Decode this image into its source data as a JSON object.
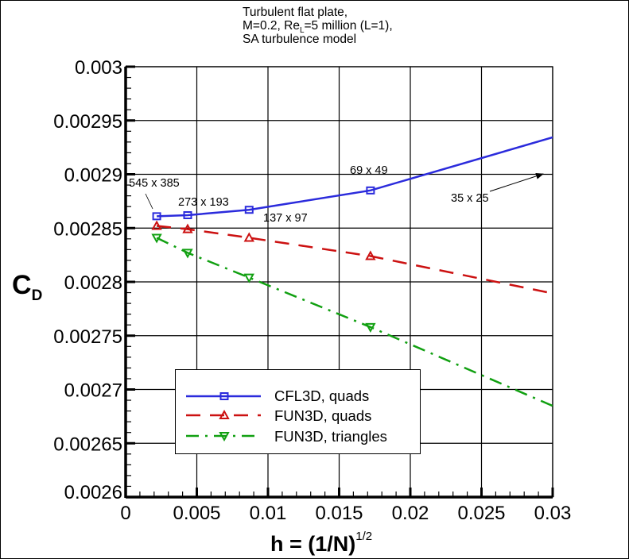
{
  "chart_data": {
    "type": "line",
    "title_lines": [
      "Turbulent flat plate,",
      "M=0.2, Re",
      "L",
      "=5 million (L=1),",
      "SA turbulence model"
    ],
    "xlabel": "h = (1/N)",
    "xlabel_sup": "1/2",
    "ylabel": "C",
    "ylabel_sub": "D",
    "xlim": [
      0,
      0.03
    ],
    "ylim": [
      0.0026,
      0.003
    ],
    "xticks": [
      0,
      0.005,
      0.01,
      0.015,
      0.02,
      0.025,
      0.03
    ],
    "xtick_labels": [
      "0",
      "0.005",
      "0.01",
      "0.015",
      "0.02",
      "0.025",
      "0.03"
    ],
    "yticks": [
      0.0026,
      0.00265,
      0.0027,
      0.00275,
      0.0028,
      0.00285,
      0.0029,
      0.00295,
      0.003
    ],
    "ytick_labels": [
      "0.0026",
      "0.00265",
      "0.0027",
      "0.00275",
      "0.0028",
      "0.00285",
      "0.0029",
      "0.00295",
      "0.003"
    ],
    "grid": true,
    "legend_position": "lower-left",
    "x": [
      0.002183,
      0.004357,
      0.008675,
      0.0172,
      0.0338
    ],
    "grid_labels": [
      "545 x 385",
      "273 x 193",
      "137 x 97",
      "69 x 49",
      "35 x 25"
    ],
    "series": [
      {
        "name": "CFL3D, quads",
        "color": "#2b2bdc",
        "dash": "solid",
        "marker": "square",
        "values": [
          0.002861,
          0.002862,
          0.002867,
          0.002885,
          0.002949
        ]
      },
      {
        "name": "FUN3D, quads",
        "color": "#cc1111",
        "dash": "dashed",
        "marker": "triangle-up",
        "values": [
          0.002852,
          0.002849,
          0.002841,
          0.002824,
          0.002779
        ]
      },
      {
        "name": "FUN3D, triangles",
        "color": "#11a011",
        "dash": "dash-dot",
        "marker": "triangle-down",
        "values": [
          0.002841,
          0.002827,
          0.002804,
          0.002758,
          0.002663
        ]
      }
    ]
  }
}
